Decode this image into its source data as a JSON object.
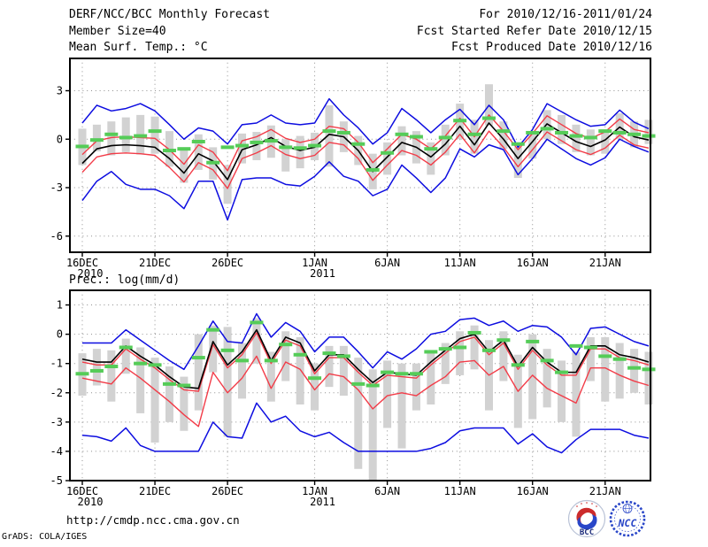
{
  "header": {
    "title": "DERF/NCC/BCC Monthly Forecast",
    "member_size": "Member Size=40",
    "for_range": "For 2010/12/16-2011/01/24",
    "fcst_started": "Fcst Started Refer Date 2010/12/15",
    "fcst_produced": "Fcst Produced Date 2010/12/16"
  },
  "footer": {
    "url": "http://cmdp.ncc.cma.gov.cn",
    "credit": "GrADS: COLA/IGES",
    "logo_bcc": "BCC",
    "logo_ncc": "NCC"
  },
  "colors": {
    "envelope_blue": "#0d0de0",
    "quartile_red": "#f23c48",
    "mean_black": "#000000",
    "obs_green": "#55cc58",
    "spread_bar": "#d2d2d2",
    "grid": "#8f8f8f",
    "frame": "#000000",
    "text": "#000000",
    "logo_blue": "#2946c8",
    "logo_red": "#cc2b2b",
    "logo_navy": "#1a2a7a"
  },
  "chart_data": [
    {
      "type": "line",
      "panel": "temperature",
      "title": "Mean Surf. Temp.: °C",
      "start_date": "2010/12/16",
      "end_date": "2011/01/24",
      "n_points": 40,
      "ylim": [
        -7,
        5
      ],
      "yticks": [
        3,
        0,
        -3,
        -6
      ],
      "grid": true,
      "xticks": [
        {
          "day": 0,
          "label": "16DEC",
          "sub": "2010"
        },
        {
          "day": 5,
          "label": "21DEC"
        },
        {
          "day": 10,
          "label": "26DEC"
        },
        {
          "day": 16,
          "label": "1JAN",
          "sub": "2011"
        },
        {
          "day": 21,
          "label": "6JAN"
        },
        {
          "day": 26,
          "label": "11JAN"
        },
        {
          "day": 31,
          "label": "16JAN"
        },
        {
          "day": 36,
          "label": "21JAN"
        }
      ],
      "series": {
        "ensemble_max": [
          1.0,
          2.1,
          1.75,
          1.9,
          2.2,
          1.75,
          0.9,
          0.0,
          0.7,
          0.5,
          -0.3,
          0.9,
          1.0,
          1.5,
          1.0,
          0.9,
          1.0,
          2.5,
          1.5,
          0.7,
          -0.3,
          0.4,
          1.9,
          1.2,
          0.4,
          1.2,
          1.85,
          0.9,
          2.1,
          1.2,
          -0.5,
          0.6,
          2.2,
          1.7,
          1.2,
          0.8,
          0.9,
          1.8,
          1.05,
          0.65
        ],
        "upper_red": [
          -0.95,
          -0.1,
          0.1,
          0.15,
          0.1,
          0.05,
          -0.65,
          -1.55,
          -0.35,
          -0.8,
          -1.95,
          -0.1,
          0.15,
          0.6,
          0.05,
          -0.2,
          0.0,
          0.8,
          0.65,
          -0.2,
          -1.45,
          -0.6,
          0.3,
          0.0,
          -0.6,
          0.2,
          1.3,
          0.15,
          1.5,
          0.5,
          -0.65,
          0.35,
          1.45,
          0.9,
          0.35,
          0.05,
          0.45,
          1.25,
          0.6,
          0.4
        ],
        "ensemble_mean": [
          -1.5,
          -0.6,
          -0.4,
          -0.35,
          -0.4,
          -0.5,
          -1.2,
          -2.1,
          -0.9,
          -1.35,
          -2.5,
          -0.65,
          -0.35,
          0.1,
          -0.45,
          -0.7,
          -0.5,
          0.3,
          0.15,
          -0.7,
          -2.0,
          -1.1,
          -0.2,
          -0.5,
          -1.1,
          -0.3,
          0.8,
          -0.35,
          1.0,
          0.0,
          -1.2,
          -0.15,
          0.95,
          0.4,
          -0.15,
          -0.45,
          -0.05,
          0.75,
          0.15,
          -0.05
        ],
        "lower_red": [
          -2.05,
          -1.1,
          -0.9,
          -0.85,
          -0.9,
          -1.0,
          -1.75,
          -2.65,
          -1.45,
          -1.9,
          -3.05,
          -1.2,
          -0.85,
          -0.4,
          -0.95,
          -1.2,
          -1.0,
          -0.2,
          -0.35,
          -1.2,
          -2.55,
          -1.6,
          -0.7,
          -1.0,
          -1.6,
          -0.8,
          0.3,
          -0.85,
          0.5,
          -0.5,
          -1.7,
          -0.65,
          0.45,
          -0.1,
          -0.65,
          -0.95,
          -0.55,
          0.25,
          -0.35,
          -0.55
        ],
        "ensemble_min": [
          -3.8,
          -2.6,
          -2.0,
          -2.8,
          -3.1,
          -3.1,
          -3.5,
          -4.3,
          -2.6,
          -2.6,
          -5.0,
          -2.5,
          -2.4,
          -2.4,
          -2.8,
          -2.9,
          -2.3,
          -1.4,
          -2.3,
          -2.6,
          -3.5,
          -3.1,
          -1.6,
          -2.4,
          -3.3,
          -2.4,
          -0.6,
          -1.1,
          -0.35,
          -0.65,
          -2.2,
          -1.2,
          0.0,
          -0.6,
          -1.2,
          -1.6,
          -1.15,
          0.0,
          -0.45,
          -0.8
        ],
        "observation_green": [
          -0.45,
          -0.05,
          0.3,
          0.1,
          0.2,
          0.5,
          -0.7,
          -0.6,
          -0.15,
          -1.45,
          -0.5,
          -0.4,
          -0.2,
          -0.1,
          -0.5,
          -0.55,
          -0.4,
          0.5,
          0.4,
          -0.3,
          -1.9,
          -0.85,
          0.3,
          0.15,
          -0.6,
          0.1,
          1.15,
          0.3,
          1.3,
          0.5,
          -0.3,
          0.4,
          0.65,
          0.4,
          0.2,
          0.1,
          0.5,
          0.4,
          0.3,
          0.2
        ],
        "spread_bar_top": [
          0.65,
          0.9,
          1.1,
          1.35,
          1.5,
          1.4,
          0.5,
          -0.6,
          0.3,
          -0.5,
          -1.6,
          0.35,
          0.45,
          0.85,
          0.0,
          0.2,
          0.4,
          2.1,
          1.1,
          0.2,
          -0.9,
          -0.2,
          0.8,
          0.5,
          -0.2,
          0.9,
          2.2,
          1.2,
          3.4,
          1.1,
          -0.5,
          0.5,
          1.8,
          1.5,
          0.9,
          0.6,
          0.6,
          1.6,
          1.1,
          1.2
        ],
        "spread_bar_bottom": [
          -1.6,
          -0.75,
          -1.0,
          -0.8,
          -0.95,
          -0.9,
          -1.7,
          -2.7,
          -1.9,
          -2.5,
          -4.0,
          -1.5,
          -1.3,
          -1.15,
          -2.0,
          -1.8,
          -1.3,
          -1.7,
          -0.8,
          -1.6,
          -3.1,
          -2.2,
          -1.0,
          -1.5,
          -2.2,
          -1.0,
          0.0,
          -0.9,
          0.85,
          -0.6,
          -2.4,
          -1.2,
          0.0,
          -0.3,
          -0.8,
          -1.0,
          -0.9,
          0.0,
          -0.5,
          -0.3
        ]
      }
    },
    {
      "type": "line",
      "panel": "precipitation",
      "title": "Prec.: log(mm/d)",
      "start_date": "2010/12/16",
      "end_date": "2011/01/24",
      "n_points": 40,
      "ylim": [
        -5,
        1.5
      ],
      "yticks": [
        1,
        0,
        -1,
        -2,
        -3,
        -4,
        -5
      ],
      "grid": true,
      "xticks": [
        {
          "day": 0,
          "label": "16DEC",
          "sub": "2010"
        },
        {
          "day": 5,
          "label": "21DEC"
        },
        {
          "day": 10,
          "label": "26DEC"
        },
        {
          "day": 16,
          "label": "1JAN",
          "sub": "2011"
        },
        {
          "day": 21,
          "label": "6JAN"
        },
        {
          "day": 26,
          "label": "11JAN"
        },
        {
          "day": 31,
          "label": "16JAN"
        },
        {
          "day": 36,
          "label": "21JAN"
        }
      ],
      "series": {
        "ensemble_max": [
          -0.3,
          -0.3,
          -0.3,
          0.15,
          -0.2,
          -0.55,
          -0.9,
          -1.2,
          -0.4,
          0.45,
          -0.25,
          -0.3,
          0.7,
          -0.1,
          0.4,
          0.1,
          -0.6,
          -0.1,
          -0.1,
          -0.6,
          -1.15,
          -0.6,
          -0.85,
          -0.5,
          0.0,
          0.1,
          0.5,
          0.55,
          0.3,
          0.45,
          0.1,
          0.3,
          0.25,
          -0.1,
          -0.7,
          0.2,
          0.25,
          0.0,
          -0.25,
          -0.4
        ],
        "upper_red": [
          -0.95,
          -1.05,
          -1.05,
          -0.5,
          -0.85,
          -1.15,
          -1.55,
          -1.9,
          -1.95,
          -0.35,
          -1.15,
          -0.7,
          0.05,
          -1.0,
          -0.2,
          -0.4,
          -1.35,
          -0.8,
          -0.8,
          -1.3,
          -1.75,
          -1.4,
          -1.45,
          -1.5,
          -1.05,
          -0.65,
          -0.25,
          -0.1,
          -0.7,
          -0.3,
          -1.2,
          -0.55,
          -1.05,
          -1.4,
          -1.4,
          -0.5,
          -0.5,
          -0.8,
          -0.9,
          -1.05
        ],
        "ensemble_mean": [
          -0.85,
          -0.95,
          -0.95,
          -0.4,
          -0.75,
          -1.05,
          -1.45,
          -1.8,
          -1.85,
          -0.25,
          -1.05,
          -0.6,
          0.15,
          -0.9,
          -0.1,
          -0.3,
          -1.25,
          -0.7,
          -0.7,
          -1.2,
          -1.65,
          -1.3,
          -1.35,
          -1.4,
          -0.95,
          -0.55,
          -0.15,
          0.0,
          -0.6,
          -0.2,
          -1.1,
          -0.45,
          -0.95,
          -1.3,
          -1.3,
          -0.4,
          -0.4,
          -0.7,
          -0.8,
          -0.95
        ],
        "lower_red": [
          -1.5,
          -1.6,
          -1.7,
          -1.15,
          -1.5,
          -1.9,
          -2.3,
          -2.75,
          -3.15,
          -1.3,
          -2.0,
          -1.5,
          -0.75,
          -1.85,
          -0.95,
          -1.2,
          -1.9,
          -1.35,
          -1.45,
          -1.9,
          -2.55,
          -2.1,
          -2.0,
          -2.1,
          -1.75,
          -1.45,
          -0.95,
          -0.9,
          -1.4,
          -1.1,
          -1.95,
          -1.4,
          -1.85,
          -2.1,
          -2.35,
          -1.15,
          -1.15,
          -1.4,
          -1.6,
          -1.75
        ],
        "ensemble_min": [
          -3.45,
          -3.5,
          -3.65,
          -3.2,
          -3.8,
          -4.0,
          -4.0,
          -4.0,
          -4.0,
          -3.0,
          -3.5,
          -3.55,
          -2.35,
          -3.0,
          -2.8,
          -3.3,
          -3.5,
          -3.35,
          -3.7,
          -4.0,
          -4.0,
          -4.0,
          -4.0,
          -4.0,
          -3.9,
          -3.7,
          -3.3,
          -3.2,
          -3.2,
          -3.2,
          -3.75,
          -3.4,
          -3.85,
          -4.05,
          -3.6,
          -3.25,
          -3.25,
          -3.25,
          -3.45,
          -3.55
        ],
        "observation_green": [
          -1.35,
          -1.25,
          -1.1,
          -0.45,
          -1.0,
          -1.05,
          -1.7,
          -1.75,
          -0.8,
          0.15,
          -0.55,
          -0.9,
          0.4,
          -0.9,
          -0.35,
          -0.7,
          -1.5,
          -0.65,
          -0.75,
          -1.7,
          -1.75,
          -1.3,
          -1.35,
          -1.35,
          -0.6,
          -0.5,
          -0.45,
          0.05,
          -0.55,
          -0.2,
          -1.05,
          -0.25,
          -0.9,
          -1.3,
          -0.4,
          -0.45,
          -0.75,
          -0.85,
          -1.15,
          -1.2
        ],
        "spread_bar_top": [
          -0.65,
          -0.5,
          -0.55,
          -0.15,
          -0.45,
          -0.8,
          -1.1,
          -1.45,
          0.0,
          0.3,
          0.25,
          -0.3,
          0.55,
          -0.6,
          0.1,
          -0.1,
          -1.0,
          -0.4,
          -0.4,
          -0.8,
          -1.2,
          -0.9,
          -1.0,
          -1.0,
          -0.6,
          -0.3,
          0.1,
          0.3,
          -0.2,
          0.1,
          -0.7,
          0.0,
          -0.5,
          -0.9,
          -0.6,
          -0.1,
          -0.1,
          -0.3,
          -0.5,
          -0.6
        ],
        "spread_bar_bottom": [
          -2.1,
          -1.75,
          -2.3,
          -1.35,
          -2.7,
          -3.7,
          -3.0,
          -3.3,
          -2.6,
          -1.3,
          -3.5,
          -2.2,
          -1.0,
          -2.3,
          -1.6,
          -2.4,
          -2.6,
          -1.8,
          -2.1,
          -4.6,
          -5.0,
          -3.2,
          -3.9,
          -2.6,
          -2.4,
          -1.7,
          -1.4,
          -1.2,
          -2.6,
          -1.6,
          -3.2,
          -2.9,
          -2.5,
          -3.0,
          -3.5,
          -1.6,
          -2.3,
          -2.2,
          -2.0,
          -2.4
        ]
      }
    }
  ]
}
